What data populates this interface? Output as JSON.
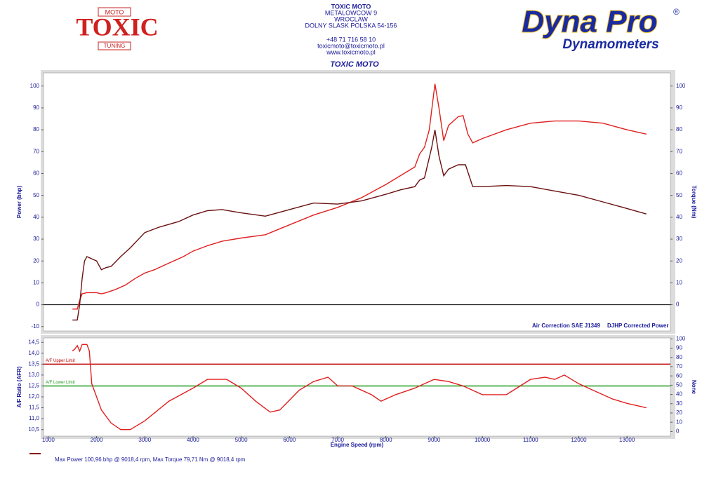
{
  "header": {
    "logo_left": {
      "main": "TOXIC",
      "top": "MOTO",
      "bottom": "TUNING"
    },
    "address": [
      "TOXIC MOTO",
      "METALOWCOW 9",
      "WROCLAW",
      "DOLNY SLASK POLSKA 54-156",
      "+48 71 716 58 10",
      "toxicmoto@toxicmoto.pl",
      "www.toxicmoto.pl"
    ],
    "logo_right": {
      "main": "Dyna Pro",
      "mark": "®",
      "sub": "Dynamometers"
    }
  },
  "chart_data": [
    {
      "type": "line",
      "title": "TOXIC MOTO",
      "ylabel": "Power (bhp)",
      "y2label": "Torque (Nm)",
      "annotations": [
        "Air Correction SAE J1349",
        "DJHP Corrected Power"
      ],
      "zero_line": true,
      "xlim": [
        900,
        13900
      ],
      "ylim": [
        -12,
        106
      ],
      "yticks": [
        -10,
        0,
        10,
        20,
        30,
        40,
        50,
        60,
        70,
        80,
        90,
        100
      ],
      "y2lim": [
        -12,
        106
      ],
      "y2ticks": [
        0,
        10,
        20,
        30,
        40,
        50,
        60,
        70,
        80,
        90,
        100
      ],
      "series": [
        {
          "color": "#e02020",
          "x": [
            1500,
            1600,
            1650,
            1700,
            1800,
            1900,
            2000,
            2100,
            2200,
            2400,
            2600,
            2800,
            3000,
            3200,
            3500,
            3800,
            4000,
            4300,
            4600,
            5000,
            5500,
            6000,
            6500,
            7000,
            7500,
            8000,
            8300,
            8600,
            8700,
            8800,
            8900,
            9018,
            9100,
            9200,
            9300,
            9400,
            9500,
            9600,
            9700,
            9800,
            10000,
            10500,
            11000,
            11500,
            12000,
            12500,
            13000,
            13400
          ],
          "values": [
            -2,
            -2,
            2,
            5,
            5.5,
            5.5,
            5.5,
            5,
            5.5,
            7,
            9,
            12,
            14.5,
            16,
            19,
            22,
            24.5,
            27,
            29,
            30.5,
            32,
            36.5,
            41,
            44.5,
            49,
            55,
            59,
            63,
            69,
            72,
            80,
            101,
            90,
            75,
            82,
            84,
            86,
            86.5,
            78,
            74,
            76,
            80,
            83,
            84,
            84,
            83,
            80,
            78
          ]
        },
        {
          "color": "#6a1010",
          "axis": "y2",
          "x": [
            1500,
            1600,
            1650,
            1700,
            1750,
            1800,
            1900,
            2000,
            2100,
            2200,
            2300,
            2500,
            2700,
            3000,
            3300,
            3700,
            4000,
            4300,
            4600,
            5000,
            5500,
            6000,
            6500,
            7000,
            7500,
            8000,
            8300,
            8600,
            8700,
            8800,
            8950,
            9018,
            9100,
            9200,
            9300,
            9500,
            9650,
            9800,
            10000,
            10500,
            11000,
            11500,
            12000,
            12500,
            13000,
            13400
          ],
          "values": [
            -7,
            -7,
            0,
            12,
            20,
            22,
            21,
            20,
            16,
            17,
            17.5,
            22,
            26,
            33,
            35.5,
            38,
            41,
            43,
            43.5,
            42,
            40.5,
            43.5,
            46.5,
            46,
            47.5,
            50.5,
            52.5,
            54,
            57,
            58,
            72,
            80,
            68,
            59,
            62,
            64,
            64,
            54,
            54,
            54.5,
            54,
            52,
            50,
            47,
            44,
            41.5
          ]
        }
      ]
    },
    {
      "type": "line",
      "xlabel": "Engine Speed (rpm)",
      "ylabel": "A/F Ratio (AFR)",
      "y2label": "None",
      "xlim": [
        900,
        13900
      ],
      "xticks": [
        1000,
        2000,
        3000,
        4000,
        5000,
        6000,
        7000,
        8000,
        9000,
        10000,
        11000,
        12000,
        13000
      ],
      "ylim": [
        10.2,
        14.7
      ],
      "yticks": [
        {
          "value": 10.5,
          "label": "10,5"
        },
        {
          "value": 11,
          "label": "11,0"
        },
        {
          "value": 11.5,
          "label": "11,5"
        },
        {
          "value": 12,
          "label": "12,0"
        },
        {
          "value": 12.5,
          "label": "12,5"
        },
        {
          "value": 13,
          "label": "13,0"
        },
        {
          "value": 13.5,
          "label": "13,5"
        },
        {
          "value": 14,
          "label": "14,0"
        },
        {
          "value": 14.5,
          "label": "14,5"
        }
      ],
      "y2lim": [
        -5,
        101
      ],
      "y2ticks": [
        0,
        10,
        20,
        30,
        40,
        50,
        60,
        70,
        80,
        90,
        100
      ],
      "limits": [
        {
          "label": "A/F Upper Limit",
          "value": 13.5,
          "color": "#c00000"
        },
        {
          "label": "A/F Lower Limit",
          "value": 12.5,
          "color": "#1a9a1a"
        }
      ],
      "series": [
        {
          "color": "#e02020",
          "x": [
            1500,
            1550,
            1600,
            1650,
            1700,
            1800,
            1850,
            1900,
            2000,
            2100,
            2300,
            2500,
            2700,
            3000,
            3500,
            4000,
            4300,
            4700,
            5000,
            5300,
            5600,
            5800,
            6200,
            6500,
            6800,
            7000,
            7300,
            7700,
            7900,
            8200,
            8600,
            8800,
            9000,
            9300,
            9600,
            10000,
            10500,
            11000,
            11300,
            11500,
            11700,
            12000,
            12300,
            12700,
            13000,
            13200,
            13400
          ],
          "values": [
            14.1,
            14.2,
            14.35,
            14.1,
            14.4,
            14.4,
            14.1,
            12.6,
            12.0,
            11.4,
            10.8,
            10.5,
            10.5,
            10.9,
            11.8,
            12.4,
            12.8,
            12.8,
            12.4,
            11.8,
            11.3,
            11.4,
            12.3,
            12.7,
            12.9,
            12.5,
            12.5,
            12.1,
            11.8,
            12.1,
            12.4,
            12.6,
            12.8,
            12.7,
            12.5,
            12.1,
            12.1,
            12.8,
            12.9,
            12.8,
            13.0,
            12.6,
            12.3,
            11.9,
            11.7,
            11.6,
            11.5
          ]
        }
      ]
    }
  ],
  "footer": "Max Power 100,96 bhp @ 9018,4 rpm, Max Torque 79,71 Nm @ 9018,4 rpm"
}
